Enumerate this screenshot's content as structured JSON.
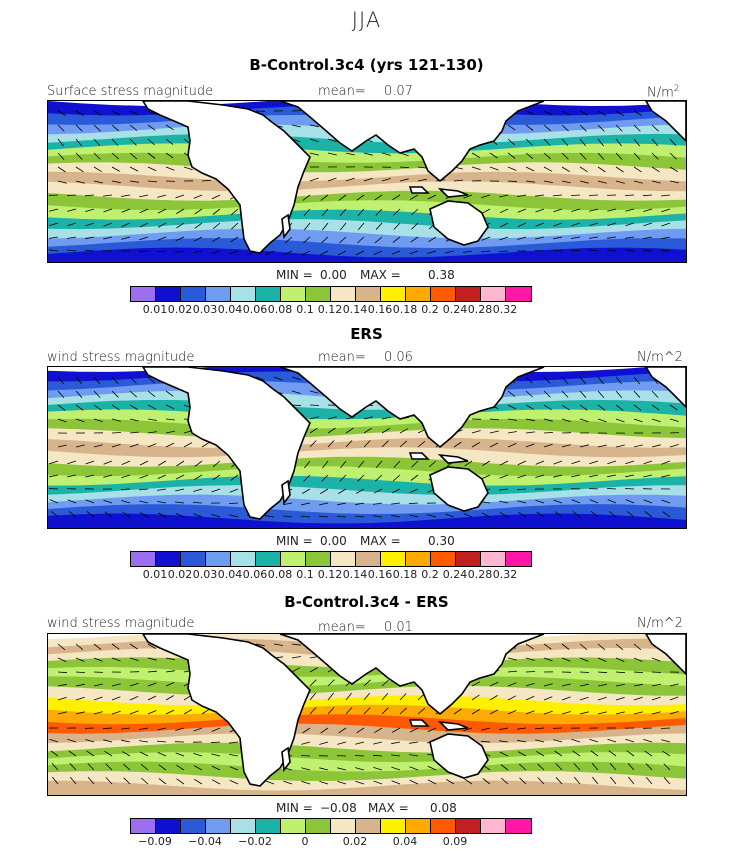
{
  "season": "JJA",
  "colors": [
    "#9b6ff0",
    "#1010d0",
    "#2a5ad8",
    "#6f9cf0",
    "#a8e0e8",
    "#1bb3a8",
    "#c0f070",
    "#8cc638",
    "#f5e6c4",
    "#d8b48c",
    "#fff000",
    "#ffaa00",
    "#ff5a00",
    "#c02020",
    "#ffb8d0",
    "#ff18a8"
  ],
  "land_color": "#ffffff",
  "panels": [
    {
      "title": "B-Control.3c4 (yrs 121-130)",
      "field_label": "Surface stress magnitude",
      "mean_label": "mean=",
      "mean_value": "0.07",
      "units": "N/m",
      "units_sup": "2",
      "min_label": "MIN =",
      "min_value": "0.00",
      "max_label": "MAX =",
      "max_value": "0.38",
      "ticks": [
        "0.01",
        "0.02",
        "0.03",
        "0.04",
        "0.06",
        "0.08",
        "0.1",
        "0.12",
        "0.14",
        "0.16",
        "0.18",
        "0.2",
        "0.24",
        "0.28",
        "0.32"
      ]
    },
    {
      "title": "ERS",
      "field_label": "wind stress magnitude",
      "mean_label": "mean=",
      "mean_value": "0.06",
      "units": "N/m^2",
      "units_sup": "",
      "min_label": "MIN =",
      "min_value": "0.00",
      "max_label": "MAX =",
      "max_value": "0.30",
      "ticks": [
        "0.01",
        "0.02",
        "0.03",
        "0.04",
        "0.06",
        "0.08",
        "0.1",
        "0.12",
        "0.14",
        "0.16",
        "0.18",
        "0.2",
        "0.24",
        "0.28",
        "0.32"
      ]
    },
    {
      "title": "B-Control.3c4 - ERS",
      "field_label": "wind stress magnitude",
      "mean_label": "mean=",
      "mean_value": "0.01",
      "units": "N/m^2",
      "units_sup": "",
      "min_label": "MIN =",
      "min_value": "−0.08",
      "max_label": "MAX =",
      "max_value": "0.08",
      "ticks": [
        "−0.09",
        "",
        "−0.04",
        "",
        "−0.02",
        "",
        "0",
        "",
        "0.02",
        "",
        "0.04",
        "",
        "0.09",
        "",
        ""
      ]
    }
  ]
}
